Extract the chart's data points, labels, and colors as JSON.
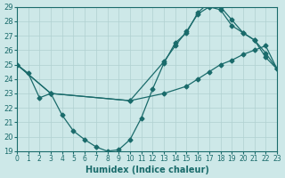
{
  "xlabel": "Humidex (Indice chaleur)",
  "bg_color": "#cde8e8",
  "grid_color": "#b0d0d0",
  "line_color": "#1a6b6b",
  "xlim": [
    0,
    23
  ],
  "ylim": [
    19,
    29
  ],
  "xticks": [
    0,
    1,
    2,
    3,
    4,
    5,
    6,
    7,
    8,
    9,
    10,
    11,
    12,
    13,
    14,
    15,
    16,
    17,
    18,
    19,
    20,
    21,
    22,
    23
  ],
  "yticks": [
    19,
    20,
    21,
    22,
    23,
    24,
    25,
    26,
    27,
    28,
    29
  ],
  "line1_x": [
    0,
    1,
    2,
    3,
    4,
    5,
    6,
    7,
    8,
    9,
    10,
    11,
    12,
    13,
    14,
    15,
    16,
    17,
    18,
    19,
    20,
    21,
    22,
    23
  ],
  "line1_y": [
    25,
    24.4,
    22.7,
    23.0,
    21.5,
    20.4,
    19.8,
    19.3,
    19.0,
    19.1,
    19.8,
    21.3,
    23.3,
    25.1,
    26.5,
    27.2,
    28.6,
    29.3,
    29.0,
    28.1,
    27.2,
    26.7,
    25.5,
    24.7
  ],
  "line2_x": [
    0,
    3,
    10,
    13,
    15,
    16,
    17,
    18,
    19,
    20,
    21,
    22,
    23
  ],
  "line2_y": [
    25,
    23.0,
    22.5,
    23.0,
    23.5,
    24.0,
    24.5,
    25.0,
    25.3,
    25.7,
    26.0,
    26.3,
    24.7
  ],
  "line3_x": [
    0,
    3,
    10,
    13,
    14,
    15,
    16,
    17,
    18,
    19,
    20,
    21,
    22,
    23
  ],
  "line3_y": [
    25,
    23.0,
    22.5,
    25.2,
    26.3,
    27.3,
    28.5,
    29.0,
    28.8,
    27.7,
    27.2,
    26.7,
    25.8,
    24.7
  ]
}
